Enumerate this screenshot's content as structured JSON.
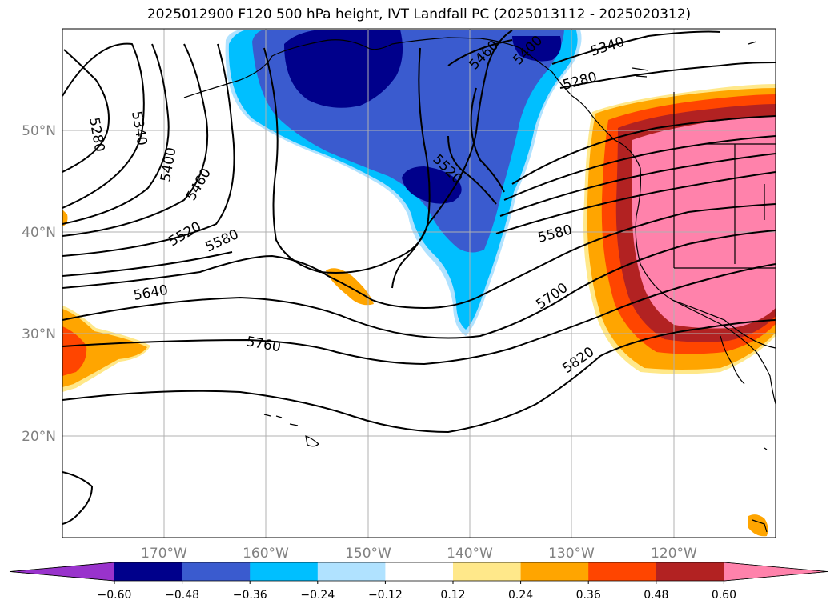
{
  "title": "2025012900 F120 500 hPa height, IVT Landfall PC (2025013112 - 2025020312)",
  "map": {
    "lat_labels": [
      "50°N",
      "40°N",
      "30°N",
      "20°N"
    ],
    "lon_labels": [
      "170°W",
      "160°W",
      "150°W",
      "140°W",
      "130°W",
      "120°W"
    ],
    "contour_labels": [
      "5280",
      "5340",
      "5400",
      "5460",
      "5520",
      "5580",
      "5640",
      "5760",
      "5460",
      "5400",
      "5340",
      "5280",
      "5520",
      "5580",
      "5700",
      "5820"
    ]
  },
  "colorbar": {
    "tick_labels": [
      "−0.60",
      "−0.48",
      "−0.36",
      "−0.24",
      "−0.12",
      "0.12",
      "0.24",
      "0.36",
      "0.48",
      "0.60"
    ],
    "colors": [
      "#9933cc",
      "#00008b",
      "#3a5bcf",
      "#00bfff",
      "#b0e2ff",
      "#ffffff",
      "#ffe88a",
      "#ffa500",
      "#ff4500",
      "#b22222",
      "#ff82ab"
    ]
  }
}
